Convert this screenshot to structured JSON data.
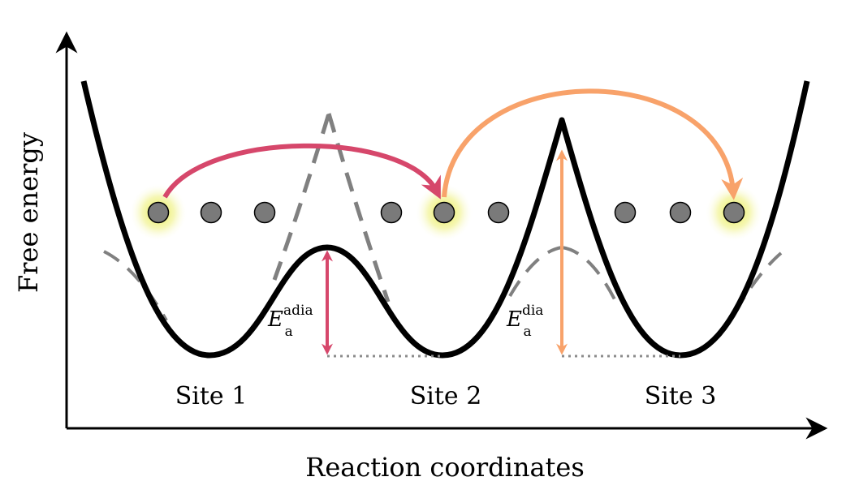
{
  "axes": {
    "y_label": "Free energy",
    "x_label": "Reaction coordinates"
  },
  "sites": [
    {
      "label": "Site 1"
    },
    {
      "label": "Site 2"
    },
    {
      "label": "Site 3"
    }
  ],
  "barriers": {
    "adiabatic": {
      "symbol": "E",
      "subscript": "a",
      "superscript": "adia",
      "color": "#d6476b"
    },
    "diabatic": {
      "symbol": "E",
      "subscript": "a",
      "superscript": "dia",
      "color": "#f8a26a"
    }
  },
  "colors": {
    "curve": "#000000",
    "dashed_curve": "#808080",
    "particle": "#7a7a7a",
    "glow": "#e6ea3a",
    "dotted_baseline": "#8c8c8c"
  }
}
